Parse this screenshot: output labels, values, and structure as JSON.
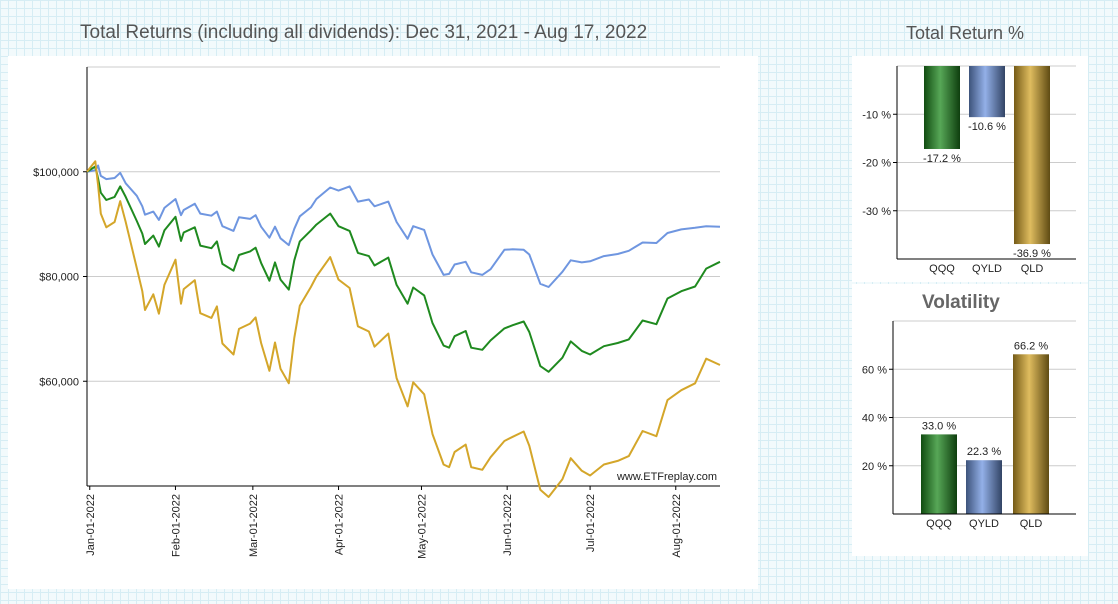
{
  "main_title": "Total Returns (including all dividends): Dec 31, 2021 - Aug 17, 2022",
  "return_title": "Total Return %",
  "volatility_title": "Volatility",
  "watermark": "www.ETFreplay.com",
  "colors": {
    "QQQ": "#1f8a1f",
    "QYLD": "#6f96e0",
    "QLD": "#d4a62a"
  },
  "chart_data": [
    {
      "type": "line",
      "title": "Total Returns (including all dividends): Dec 31, 2021 - Aug 17, 2022",
      "xlabel": "",
      "ylabel": "",
      "x_ticks": [
        "Jan-01-2022",
        "Feb-01-2022",
        "Mar-01-2022",
        "Apr-01-2022",
        "May-01-2022",
        "Jun-01-2022",
        "Jul-01-2022",
        "Aug-01-2022"
      ],
      "y_ticks": [
        "$60,000",
        "$80,000",
        "$100,000"
      ],
      "y_tick_values": [
        60000,
        80000,
        100000
      ],
      "ylim": [
        40000,
        120000
      ],
      "xlim": [
        "2021-12-31",
        "2022-08-17"
      ],
      "grid": true,
      "series": [
        {
          "key": "QYLD",
          "points": [
            [
              "2021-12-31",
              100000
            ],
            [
              "2022-01-03",
              100300
            ],
            [
              "2022-01-04",
              101200
            ],
            [
              "2022-01-05",
              99200
            ],
            [
              "2022-01-07",
              98600
            ],
            [
              "2022-01-10",
              98800
            ],
            [
              "2022-01-12",
              99800
            ],
            [
              "2022-01-14",
              97800
            ],
            [
              "2022-01-18",
              95400
            ],
            [
              "2022-01-20",
              93400
            ],
            [
              "2022-01-21",
              91800
            ],
            [
              "2022-01-24",
              92400
            ],
            [
              "2022-01-26",
              90800
            ],
            [
              "2022-01-28",
              93100
            ],
            [
              "2022-02-01",
              94800
            ],
            [
              "2022-02-03",
              91700
            ],
            [
              "2022-02-04",
              92700
            ],
            [
              "2022-02-08",
              93900
            ],
            [
              "2022-02-10",
              92000
            ],
            [
              "2022-02-14",
              91600
            ],
            [
              "2022-02-16",
              92400
            ],
            [
              "2022-02-18",
              89600
            ],
            [
              "2022-02-22",
              88700
            ],
            [
              "2022-02-24",
              91300
            ],
            [
              "2022-02-28",
              91000
            ],
            [
              "2022-03-02",
              91700
            ],
            [
              "2022-03-04",
              89500
            ],
            [
              "2022-03-07",
              87400
            ],
            [
              "2022-03-09",
              89500
            ],
            [
              "2022-03-11",
              87300
            ],
            [
              "2022-03-14",
              86000
            ],
            [
              "2022-03-16",
              89100
            ],
            [
              "2022-03-18",
              91500
            ],
            [
              "2022-03-22",
              93200
            ],
            [
              "2022-03-24",
              94800
            ],
            [
              "2022-03-29",
              97000
            ],
            [
              "2022-04-01",
              96400
            ],
            [
              "2022-04-05",
              97200
            ],
            [
              "2022-04-08",
              94300
            ],
            [
              "2022-04-12",
              94700
            ],
            [
              "2022-04-14",
              93400
            ],
            [
              "2022-04-19",
              94300
            ],
            [
              "2022-04-22",
              90400
            ],
            [
              "2022-04-26",
              87200
            ],
            [
              "2022-04-28",
              89600
            ],
            [
              "2022-05-02",
              88900
            ],
            [
              "2022-05-05",
              84200
            ],
            [
              "2022-05-09",
              80300
            ],
            [
              "2022-05-11",
              80500
            ],
            [
              "2022-05-13",
              82300
            ],
            [
              "2022-05-17",
              82800
            ],
            [
              "2022-05-19",
              80800
            ],
            [
              "2022-05-23",
              80300
            ],
            [
              "2022-05-26",
              81400
            ],
            [
              "2022-05-31",
              85100
            ],
            [
              "2022-06-03",
              85200
            ],
            [
              "2022-06-07",
              85100
            ],
            [
              "2022-06-09",
              84200
            ],
            [
              "2022-06-13",
              78600
            ],
            [
              "2022-06-16",
              78000
            ],
            [
              "2022-06-21",
              80900
            ],
            [
              "2022-06-24",
              83100
            ],
            [
              "2022-06-28",
              82700
            ],
            [
              "2022-07-01",
              82900
            ],
            [
              "2022-07-06",
              83900
            ],
            [
              "2022-07-11",
              84300
            ],
            [
              "2022-07-15",
              84900
            ],
            [
              "2022-07-20",
              86500
            ],
            [
              "2022-07-25",
              86400
            ],
            [
              "2022-07-29",
              88300
            ],
            [
              "2022-08-03",
              89000
            ],
            [
              "2022-08-08",
              89300
            ],
            [
              "2022-08-12",
              89600
            ],
            [
              "2022-08-17",
              89500
            ]
          ]
        },
        {
          "key": "QQQ",
          "points": [
            [
              "2021-12-31",
              100000
            ],
            [
              "2022-01-03",
              101000
            ],
            [
              "2022-01-04",
              98700
            ],
            [
              "2022-01-05",
              96000
            ],
            [
              "2022-01-07",
              94600
            ],
            [
              "2022-01-10",
              95200
            ],
            [
              "2022-01-12",
              97200
            ],
            [
              "2022-01-14",
              95200
            ],
            [
              "2022-01-18",
              90600
            ],
            [
              "2022-01-20",
              88200
            ],
            [
              "2022-01-21",
              86200
            ],
            [
              "2022-01-24",
              87800
            ],
            [
              "2022-01-26",
              85700
            ],
            [
              "2022-01-28",
              88800
            ],
            [
              "2022-02-01",
              91400
            ],
            [
              "2022-02-03",
              86800
            ],
            [
              "2022-02-04",
              88400
            ],
            [
              "2022-02-08",
              89400
            ],
            [
              "2022-02-10",
              85900
            ],
            [
              "2022-02-14",
              85400
            ],
            [
              "2022-02-16",
              86700
            ],
            [
              "2022-02-18",
              82400
            ],
            [
              "2022-02-22",
              81100
            ],
            [
              "2022-02-24",
              84100
            ],
            [
              "2022-02-28",
              84800
            ],
            [
              "2022-03-02",
              85500
            ],
            [
              "2022-03-04",
              82600
            ],
            [
              "2022-03-07",
              79200
            ],
            [
              "2022-03-09",
              82700
            ],
            [
              "2022-03-11",
              79400
            ],
            [
              "2022-03-14",
              77500
            ],
            [
              "2022-03-16",
              83100
            ],
            [
              "2022-03-18",
              86700
            ],
            [
              "2022-03-22",
              88800
            ],
            [
              "2022-03-24",
              89900
            ],
            [
              "2022-03-29",
              92000
            ],
            [
              "2022-04-01",
              89600
            ],
            [
              "2022-04-05",
              88700
            ],
            [
              "2022-04-08",
              84500
            ],
            [
              "2022-04-12",
              83900
            ],
            [
              "2022-04-14",
              82100
            ],
            [
              "2022-04-19",
              83600
            ],
            [
              "2022-04-22",
              78400
            ],
            [
              "2022-04-26",
              74800
            ],
            [
              "2022-04-28",
              77900
            ],
            [
              "2022-05-02",
              76400
            ],
            [
              "2022-05-05",
              71100
            ],
            [
              "2022-05-09",
              66800
            ],
            [
              "2022-05-11",
              66400
            ],
            [
              "2022-05-13",
              68600
            ],
            [
              "2022-05-17",
              69600
            ],
            [
              "2022-05-19",
              66400
            ],
            [
              "2022-05-23",
              66000
            ],
            [
              "2022-05-26",
              67800
            ],
            [
              "2022-05-31",
              70100
            ],
            [
              "2022-06-03",
              70700
            ],
            [
              "2022-06-07",
              71400
            ],
            [
              "2022-06-09",
              69400
            ],
            [
              "2022-06-13",
              62900
            ],
            [
              "2022-06-16",
              61800
            ],
            [
              "2022-06-21",
              64500
            ],
            [
              "2022-06-24",
              67600
            ],
            [
              "2022-06-28",
              65800
            ],
            [
              "2022-07-01",
              65100
            ],
            [
              "2022-07-06",
              66700
            ],
            [
              "2022-07-11",
              67300
            ],
            [
              "2022-07-15",
              68000
            ],
            [
              "2022-07-20",
              71600
            ],
            [
              "2022-07-25",
              70900
            ],
            [
              "2022-07-29",
              75800
            ],
            [
              "2022-08-03",
              77200
            ],
            [
              "2022-08-08",
              78100
            ],
            [
              "2022-08-12",
              81500
            ],
            [
              "2022-08-17",
              82800
            ]
          ]
        },
        {
          "key": "QLD",
          "points": [
            [
              "2021-12-31",
              100000
            ],
            [
              "2022-01-03",
              102000
            ],
            [
              "2022-01-04",
              97400
            ],
            [
              "2022-01-05",
              92000
            ],
            [
              "2022-01-07",
              89400
            ],
            [
              "2022-01-10",
              90400
            ],
            [
              "2022-01-12",
              94400
            ],
            [
              "2022-01-14",
              90400
            ],
            [
              "2022-01-18",
              81600
            ],
            [
              "2022-01-20",
              77200
            ],
            [
              "2022-01-21",
              73600
            ],
            [
              "2022-01-24",
              76600
            ],
            [
              "2022-01-26",
              72900
            ],
            [
              "2022-01-28",
              78400
            ],
            [
              "2022-02-01",
              83200
            ],
            [
              "2022-02-03",
              74800
            ],
            [
              "2022-02-04",
              77600
            ],
            [
              "2022-02-08",
              79300
            ],
            [
              "2022-02-10",
              73000
            ],
            [
              "2022-02-14",
              72100
            ],
            [
              "2022-02-16",
              74300
            ],
            [
              "2022-02-18",
              67200
            ],
            [
              "2022-02-22",
              65100
            ],
            [
              "2022-02-24",
              70000
            ],
            [
              "2022-02-28",
              71000
            ],
            [
              "2022-03-02",
              72200
            ],
            [
              "2022-03-04",
              67300
            ],
            [
              "2022-03-07",
              62000
            ],
            [
              "2022-03-09",
              67400
            ],
            [
              "2022-03-11",
              62400
            ],
            [
              "2022-03-14",
              59600
            ],
            [
              "2022-03-16",
              68300
            ],
            [
              "2022-03-18",
              74400
            ],
            [
              "2022-03-22",
              78000
            ],
            [
              "2022-03-24",
              80000
            ],
            [
              "2022-03-29",
              83700
            ],
            [
              "2022-04-01",
              79400
            ],
            [
              "2022-04-05",
              77800
            ],
            [
              "2022-04-08",
              70500
            ],
            [
              "2022-04-12",
              69500
            ],
            [
              "2022-04-14",
              66600
            ],
            [
              "2022-04-19",
              69100
            ],
            [
              "2022-04-22",
              60600
            ],
            [
              "2022-04-26",
              55200
            ],
            [
              "2022-04-28",
              59800
            ],
            [
              "2022-05-02",
              57500
            ],
            [
              "2022-05-05",
              49900
            ],
            [
              "2022-05-09",
              44100
            ],
            [
              "2022-05-11",
              43600
            ],
            [
              "2022-05-13",
              46500
            ],
            [
              "2022-05-17",
              47900
            ],
            [
              "2022-05-19",
              43600
            ],
            [
              "2022-05-23",
              43100
            ],
            [
              "2022-05-26",
              45500
            ],
            [
              "2022-05-31",
              48600
            ],
            [
              "2022-06-03",
              49400
            ],
            [
              "2022-06-07",
              50400
            ],
            [
              "2022-06-09",
              47700
            ],
            [
              "2022-06-13",
              39300
            ],
            [
              "2022-06-16",
              37900
            ],
            [
              "2022-06-21",
              41300
            ],
            [
              "2022-06-24",
              45300
            ],
            [
              "2022-06-28",
              42900
            ],
            [
              "2022-07-01",
              42000
            ],
            [
              "2022-07-06",
              44100
            ],
            [
              "2022-07-11",
              44800
            ],
            [
              "2022-07-15",
              45700
            ],
            [
              "2022-07-20",
              50500
            ],
            [
              "2022-07-25",
              49500
            ],
            [
              "2022-07-29",
              56400
            ],
            [
              "2022-08-03",
              58300
            ],
            [
              "2022-08-08",
              59600
            ],
            [
              "2022-08-12",
              64300
            ],
            [
              "2022-08-17",
              63100
            ]
          ]
        }
      ]
    },
    {
      "type": "bar",
      "title": "Total Return %",
      "categories": [
        "QQQ",
        "QYLD",
        "QLD"
      ],
      "values": [
        -17.2,
        -10.6,
        -36.9
      ],
      "value_labels": [
        "-17.2 %",
        "-10.6 %",
        "-36.9 %"
      ],
      "y_ticks": [
        "-10 %",
        "-20 %",
        "-30 %"
      ],
      "y_tick_values": [
        -10,
        -20,
        -30
      ],
      "ylim": [
        -40,
        0
      ],
      "grid": true
    },
    {
      "type": "bar",
      "title": "Volatility",
      "categories": [
        "QQQ",
        "QYLD",
        "QLD"
      ],
      "values": [
        33.0,
        22.3,
        66.2
      ],
      "value_labels": [
        "33.0 %",
        "22.3 %",
        "66.2 %"
      ],
      "y_ticks": [
        "20 %",
        "40 %",
        "60 %"
      ],
      "y_tick_values": [
        20,
        40,
        60
      ],
      "ylim": [
        0,
        80
      ],
      "grid": true
    }
  ]
}
